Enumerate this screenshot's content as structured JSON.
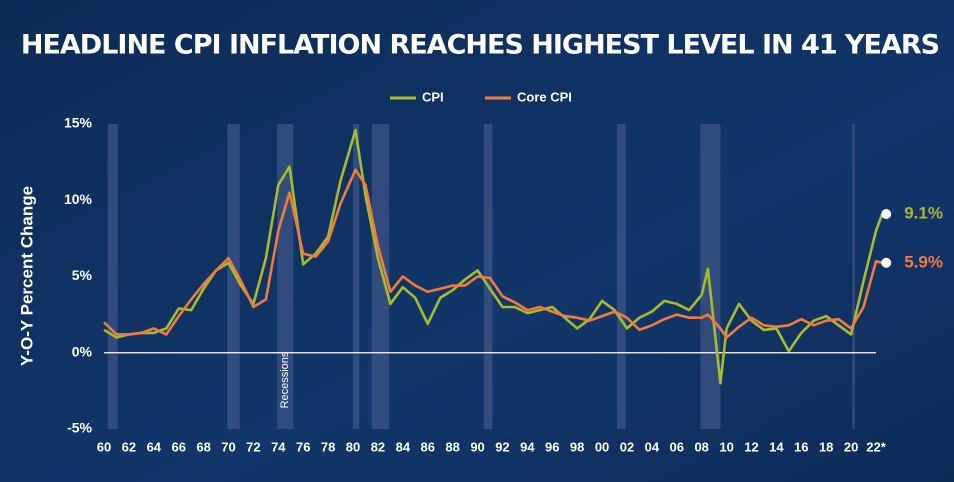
{
  "chart_data": {
    "type": "line",
    "title": "HEADLINE CPI INFLATION REACHES HIGHEST LEVEL IN 41 YEARS",
    "y_label": "Y-O-Y Percent Change",
    "annotation": "Recessions",
    "x": [
      1960,
      1961,
      1962,
      1963,
      1964,
      1965,
      1966,
      1967,
      1968,
      1969,
      1970,
      1971,
      1972,
      1973,
      1974,
      1974.9,
      1976,
      1977,
      1978,
      1979,
      1980.2,
      1981,
      1982,
      1983,
      1984,
      1985,
      1986,
      1987,
      1988,
      1989,
      1990,
      1991,
      1992,
      1993,
      1994,
      1995,
      1996,
      1997,
      1998,
      1999,
      2000,
      2001,
      2002,
      2003,
      2004,
      2005,
      2006,
      2007,
      2008,
      2008.5,
      2009.5,
      2010,
      2011,
      2012,
      2013,
      2014,
      2015,
      2016,
      2017,
      2018,
      2019,
      2020,
      2021,
      2022,
      2022.5
    ],
    "series": [
      {
        "name": "CPI",
        "color": "#a9bb2c",
        "last_label": "9.1%",
        "values": [
          1.5,
          1.0,
          1.2,
          1.3,
          1.3,
          1.6,
          2.9,
          2.8,
          4.2,
          5.4,
          5.9,
          4.4,
          3.2,
          6.2,
          11.0,
          12.2,
          5.8,
          6.5,
          7.6,
          11.3,
          14.6,
          10.3,
          6.2,
          3.2,
          4.3,
          3.6,
          1.9,
          3.6,
          4.1,
          4.8,
          5.4,
          4.2,
          3.0,
          3.0,
          2.6,
          2.8,
          3.0,
          2.3,
          1.6,
          2.2,
          3.4,
          2.8,
          1.6,
          2.3,
          2.7,
          3.4,
          3.2,
          2.8,
          3.8,
          5.5,
          -2.0,
          1.6,
          3.2,
          2.1,
          1.5,
          1.6,
          0.1,
          1.3,
          2.1,
          2.4,
          1.8,
          1.2,
          4.7,
          8.0,
          9.1
        ]
      },
      {
        "name": "Core CPI",
        "color": "#f07b3f",
        "last_label": "5.9%",
        "values": [
          2.0,
          1.2,
          1.2,
          1.3,
          1.6,
          1.2,
          2.4,
          3.5,
          4.5,
          5.4,
          6.2,
          4.7,
          3.0,
          3.5,
          8.0,
          10.5,
          6.5,
          6.3,
          7.3,
          9.8,
          12.0,
          11.0,
          7.0,
          4.0,
          5.0,
          4.4,
          4.0,
          4.2,
          4.4,
          4.4,
          5.0,
          4.9,
          3.7,
          3.3,
          2.8,
          3.0,
          2.7,
          2.4,
          2.3,
          2.1,
          2.4,
          2.7,
          2.3,
          1.5,
          1.8,
          2.2,
          2.5,
          2.3,
          2.3,
          2.5,
          1.6,
          1.0,
          1.7,
          2.3,
          1.8,
          1.7,
          1.8,
          2.2,
          1.8,
          2.1,
          2.2,
          1.6,
          3.0,
          6.0,
          5.9
        ]
      }
    ],
    "recessions": [
      [
        1960.3,
        1961.1
      ],
      [
        1969.9,
        1970.9
      ],
      [
        1973.9,
        1975.2
      ],
      [
        1980.0,
        1980.5
      ],
      [
        1981.5,
        1982.9
      ],
      [
        1990.5,
        1991.2
      ],
      [
        2001.2,
        2001.9
      ],
      [
        2007.9,
        2009.5
      ],
      [
        2020.1,
        2020.3
      ]
    ],
    "xlim": [
      1960,
      2022
    ],
    "xticks": [
      {
        "value": 1960,
        "label": "60"
      },
      {
        "value": 1962,
        "label": "62"
      },
      {
        "value": 1964,
        "label": "64"
      },
      {
        "value": 1966,
        "label": "66"
      },
      {
        "value": 1968,
        "label": "68"
      },
      {
        "value": 1970,
        "label": "70"
      },
      {
        "value": 1972,
        "label": "72"
      },
      {
        "value": 1974,
        "label": "74"
      },
      {
        "value": 1976,
        "label": "76"
      },
      {
        "value": 1978,
        "label": "78"
      },
      {
        "value": 1980,
        "label": "80"
      },
      {
        "value": 1982,
        "label": "82"
      },
      {
        "value": 1984,
        "label": "84"
      },
      {
        "value": 1986,
        "label": "86"
      },
      {
        "value": 1988,
        "label": "88"
      },
      {
        "value": 1990,
        "label": "90"
      },
      {
        "value": 1992,
        "label": "92"
      },
      {
        "value": 1994,
        "label": "94"
      },
      {
        "value": 1996,
        "label": "96"
      },
      {
        "value": 1998,
        "label": "98"
      },
      {
        "value": 2000,
        "label": "00"
      },
      {
        "value": 2002,
        "label": "02"
      },
      {
        "value": 2004,
        "label": "04"
      },
      {
        "value": 2006,
        "label": "06"
      },
      {
        "value": 2008,
        "label": "08"
      },
      {
        "value": 2010,
        "label": "10"
      },
      {
        "value": 2012,
        "label": "12"
      },
      {
        "value": 2014,
        "label": "14"
      },
      {
        "value": 2016,
        "label": "16"
      },
      {
        "value": 2018,
        "label": "18"
      },
      {
        "value": 2020,
        "label": "20"
      },
      {
        "value": 2022,
        "label": "22*"
      }
    ],
    "ylim": [
      -5,
      15
    ],
    "yticks": [
      {
        "value": -5,
        "label": "-5%"
      },
      {
        "value": 0,
        "label": "0%"
      },
      {
        "value": 5,
        "label": "5%"
      },
      {
        "value": 10,
        "label": "10%"
      },
      {
        "value": 15,
        "label": "15%"
      }
    ],
    "legend": "top"
  }
}
